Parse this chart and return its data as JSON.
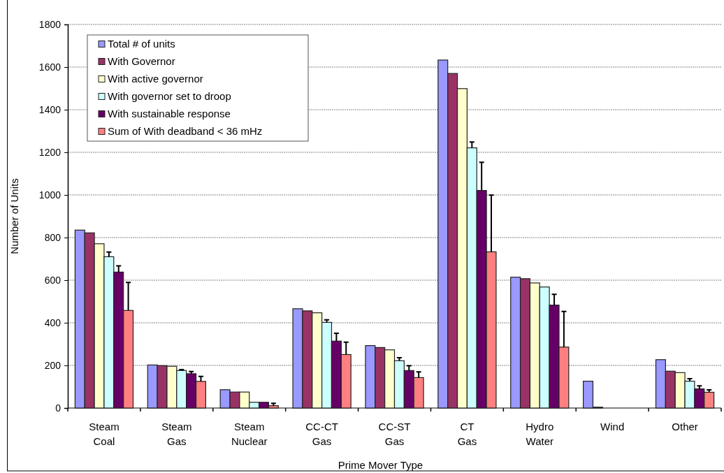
{
  "chart_data": {
    "type": "bar",
    "xlabel": "Prime Mover Type",
    "ylabel": "Number of Units",
    "categories": [
      "Steam\nCoal",
      "Steam\nGas",
      "Steam\nNuclear",
      "CC-CT\nGas",
      "CC-ST\nGas",
      "CT\nGas",
      "Hydro\nWater",
      "Wind",
      "Other"
    ],
    "ylim": [
      0,
      1800
    ],
    "yticks": [
      0,
      200,
      400,
      600,
      800,
      1000,
      1200,
      1400,
      1600,
      1800
    ],
    "grid": "y",
    "legend": "top left",
    "series": [
      {
        "name": "Total # of units",
        "color": "#9999ff",
        "values": [
          835,
          202,
          86,
          466,
          293,
          1633,
          614,
          126,
          227
        ]
      },
      {
        "name": "With Governor",
        "color": "#993366",
        "values": [
          822,
          199,
          75,
          456,
          284,
          1570,
          607,
          4,
          173
        ]
      },
      {
        "name": "With active governor",
        "color": "#ffffcc",
        "values": [
          771,
          196,
          75,
          447,
          273,
          1499,
          587,
          0,
          166
        ]
      },
      {
        "name": "With governor set to droop",
        "color": "#ccffff",
        "values": [
          710,
          176,
          27,
          402,
          222,
          1221,
          568,
          0,
          126
        ],
        "errors": [
          [
            710,
            732
          ],
          [
            176,
            180
          ],
          null,
          [
            402,
            414
          ],
          [
            222,
            236
          ],
          [
            1221,
            1248
          ],
          null,
          null,
          [
            126,
            138
          ]
        ]
      },
      {
        "name": "With sustainable response",
        "color": "#660066",
        "values": [
          638,
          161,
          27,
          314,
          176,
          1021,
          483,
          0,
          90
        ],
        "errors": [
          [
            638,
            667
          ],
          [
            161,
            171
          ],
          null,
          [
            314,
            351
          ],
          [
            176,
            198
          ],
          [
            1021,
            1153
          ],
          [
            483,
            534
          ],
          null,
          [
            90,
            104
          ]
        ]
      },
      {
        "name": "Sum of With deadband < 36 mHz",
        "color": "#ff8080",
        "values": [
          458,
          125,
          11,
          251,
          143,
          733,
          286,
          0,
          74
        ],
        "errors": [
          [
            458,
            589
          ],
          [
            125,
            148
          ],
          [
            11,
            22
          ],
          [
            251,
            309
          ],
          [
            143,
            170
          ],
          [
            733,
            999
          ],
          [
            286,
            453
          ],
          null,
          [
            74,
            85
          ]
        ]
      }
    ]
  }
}
